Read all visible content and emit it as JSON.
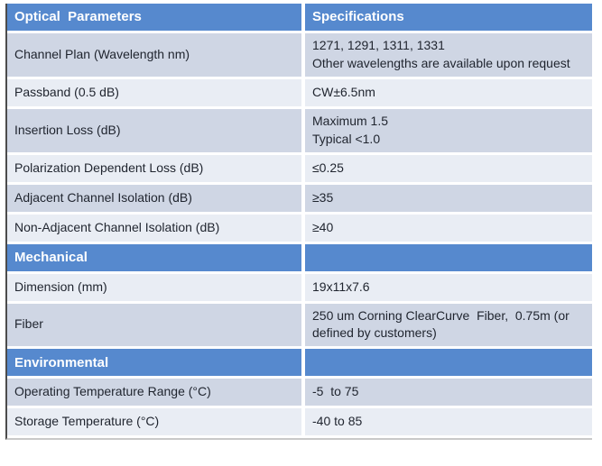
{
  "colors": {
    "header_blue": "#5689ce",
    "row_dark": "#cfd6e4",
    "row_light": "#e9edf4",
    "text": "#1f242e",
    "header_text": "#ffffff",
    "border_left": "#4c4c4c",
    "border_bottom": "#c9c9c9"
  },
  "table": {
    "rows": [
      {
        "type": "header",
        "shade": "",
        "param": "Optical  Parameters",
        "spec": "Specifications"
      },
      {
        "type": "data",
        "shade": "dark",
        "param": "Channel Plan (Wavelength nm)",
        "spec": "1271, 1291, 1311, 1331\nOther wavelengths are available upon request"
      },
      {
        "type": "data",
        "shade": "light",
        "param": "Passband (0.5 dB)",
        "spec": "CW±6.5nm"
      },
      {
        "type": "data",
        "shade": "dark",
        "param": "Insertion Loss (dB)",
        "spec": "Maximum 1.5\nTypical <1.0"
      },
      {
        "type": "data",
        "shade": "light",
        "param": "Polarization Dependent Loss (dB)",
        "spec": "≤0.25"
      },
      {
        "type": "data",
        "shade": "dark",
        "param": "Adjacent Channel Isolation (dB)",
        "spec": "≥35"
      },
      {
        "type": "data",
        "shade": "light",
        "param": "Non-Adjacent Channel Isolation (dB)",
        "spec": "≥40"
      },
      {
        "type": "section",
        "shade": "",
        "param": "Mechanical",
        "spec": ""
      },
      {
        "type": "data",
        "shade": "light",
        "param": "Dimension (mm)",
        "spec": "19x11x7.6"
      },
      {
        "type": "data",
        "shade": "dark",
        "param": "Fiber",
        "spec": "250 um Corning ClearCurve  Fiber,  0.75m (or defined by customers)"
      },
      {
        "type": "section",
        "shade": "",
        "param": "Environmental",
        "spec": ""
      },
      {
        "type": "data",
        "shade": "dark",
        "param": "Operating Temperature Range (°C)",
        "spec": "-5  to 75"
      },
      {
        "type": "data",
        "shade": "light",
        "param": "Storage Temperature (°C)",
        "spec": "-40 to 85"
      }
    ]
  }
}
